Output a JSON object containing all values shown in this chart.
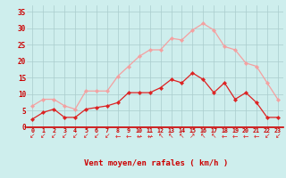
{
  "hours": [
    0,
    1,
    2,
    3,
    4,
    5,
    6,
    7,
    8,
    9,
    10,
    11,
    12,
    13,
    14,
    15,
    16,
    17,
    18,
    19,
    20,
    21,
    22,
    23
  ],
  "wind_avg": [
    2.5,
    4.5,
    5.5,
    3.0,
    3.0,
    5.5,
    6.0,
    6.5,
    7.5,
    10.5,
    10.5,
    10.5,
    12.0,
    14.5,
    13.5,
    16.5,
    14.5,
    10.5,
    13.5,
    8.5,
    10.5,
    7.5,
    3.0,
    3.0
  ],
  "wind_gust": [
    6.5,
    8.5,
    8.5,
    6.5,
    5.5,
    11.0,
    11.0,
    11.0,
    15.5,
    18.5,
    21.5,
    23.5,
    23.5,
    27.0,
    26.5,
    29.5,
    31.5,
    29.5,
    24.5,
    23.5,
    19.5,
    18.5,
    13.5,
    8.5
  ],
  "wind_dirs": [
    "↙",
    "↙",
    "↙",
    "↙",
    "↙",
    "↙",
    "↙",
    "↙",
    "←",
    "←",
    "↚",
    "↚",
    "↖",
    "↖",
    "↖",
    "↗",
    "↖",
    "↖",
    "←",
    "←",
    "←",
    "←",
    "↙",
    "↙"
  ],
  "avg_color": "#dd2222",
  "gust_color": "#f4a0a0",
  "bg_color": "#ceeeed",
  "grid_color": "#aacccc",
  "xlabel": "Vent moyen/en rafales ( km/h )",
  "xlabel_color": "#cc0000",
  "tick_color": "#cc0000",
  "ylim": [
    0,
    37
  ],
  "yticks": [
    0,
    5,
    10,
    15,
    20,
    25,
    30,
    35
  ],
  "ytick_labels": [
    "0",
    "5",
    "10",
    "15",
    "20",
    "25",
    "30",
    "35"
  ],
  "marker": "D",
  "marker_size": 2.2,
  "linewidth": 0.9,
  "spine_color": "#cc0000"
}
